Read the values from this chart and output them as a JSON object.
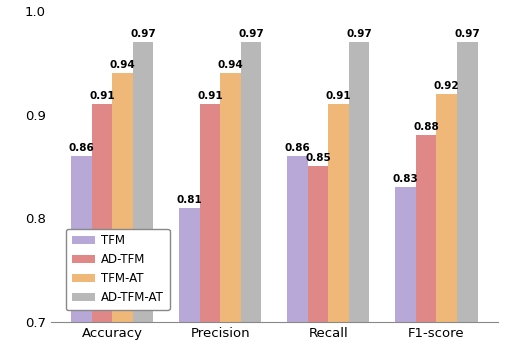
{
  "categories": [
    "Accuracy",
    "Precision",
    "Recall",
    "F1-score"
  ],
  "series": {
    "TFM": [
      0.86,
      0.81,
      0.86,
      0.83
    ],
    "AD-TFM": [
      0.91,
      0.91,
      0.85,
      0.88
    ],
    "TFM-AT": [
      0.94,
      0.94,
      0.91,
      0.92
    ],
    "AD-TFM-AT": [
      0.97,
      0.97,
      0.97,
      0.97
    ]
  },
  "colors": {
    "TFM": "#b8a8d8",
    "AD-TFM": "#e08888",
    "TFM-AT": "#f0b878",
    "AD-TFM-AT": "#b8b8b8"
  },
  "ylim": [
    0.7,
    1.0
  ],
  "yticks": [
    0.7,
    0.8,
    0.9,
    1.0
  ],
  "bar_width": 0.19,
  "tick_fontsize": 9.5,
  "legend_fontsize": 8.5,
  "value_fontsize": 7.5,
  "background_color": "#ffffff"
}
